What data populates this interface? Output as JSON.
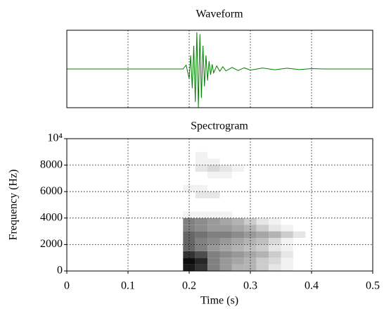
{
  "chart_data": [
    {
      "type": "line",
      "title": "Waveform",
      "x": [
        0,
        0.19,
        0.195,
        0.2,
        0.2025,
        0.205,
        0.2075,
        0.21,
        0.2125,
        0.215,
        0.2175,
        0.22,
        0.2225,
        0.225,
        0.2275,
        0.23,
        0.2325,
        0.235,
        0.2375,
        0.24,
        0.245,
        0.25,
        0.255,
        0.26,
        0.27,
        0.28,
        0.29,
        0.3,
        0.32,
        0.34,
        0.36,
        0.38,
        0.4,
        0.42,
        0.5
      ],
      "series": [
        {
          "color": "#008000",
          "values": [
            0,
            0,
            0.1,
            -0.25,
            0.35,
            -0.5,
            0.6,
            -0.85,
            0.95,
            -1.0,
            0.9,
            -0.75,
            0.6,
            -0.45,
            0.35,
            -0.3,
            0.2,
            -0.15,
            0.12,
            -0.1,
            0.08,
            -0.06,
            0.06,
            -0.05,
            0.04,
            -0.04,
            0.03,
            -0.03,
            0.025,
            -0.02,
            0.02,
            -0.015,
            0.01,
            0,
            0
          ]
        }
      ],
      "xlim": [
        0,
        0.5
      ],
      "ylim": [
        -1,
        1
      ],
      "xticks": [
        0.1,
        0.2,
        0.3,
        0.4
      ],
      "grid": true,
      "tick_labels": false
    },
    {
      "type": "heatmap",
      "title": "Spectrogram",
      "xlabel": "Time (s)",
      "ylabel": "Frequency (Hz)",
      "x_bins": [
        0.19,
        0.21,
        0.23,
        0.25,
        0.27,
        0.29,
        0.31,
        0.33,
        0.35,
        0.37,
        0.39
      ],
      "y_bins": [
        0,
        500,
        1000,
        1500,
        2000,
        2500,
        3000,
        3500,
        4000,
        4500,
        5000,
        5500,
        6000,
        6500,
        7000,
        7500,
        8000,
        8500,
        9000
      ],
      "values": [
        [
          0.9,
          0.8,
          0.5,
          0.4,
          0.3,
          0.3,
          0.2,
          0.1,
          0.05,
          0
        ],
        [
          0.95,
          0.85,
          0.5,
          0.4,
          0.35,
          0.3,
          0.2,
          0.15,
          0.05,
          0
        ],
        [
          0.8,
          0.7,
          0.5,
          0.45,
          0.4,
          0.35,
          0.3,
          0.2,
          0.1,
          0
        ],
        [
          0.6,
          0.5,
          0.4,
          0.35,
          0.3,
          0.25,
          0.2,
          0.1,
          0.05,
          0
        ],
        [
          0.6,
          0.5,
          0.45,
          0.4,
          0.35,
          0.3,
          0.25,
          0.15,
          0.05,
          0
        ],
        [
          0.6,
          0.55,
          0.5,
          0.5,
          0.45,
          0.4,
          0.35,
          0.3,
          0.2,
          0.1
        ],
        [
          0.5,
          0.45,
          0.4,
          0.4,
          0.35,
          0.3,
          0.2,
          0.1,
          0.05,
          0
        ],
        [
          0.5,
          0.45,
          0.4,
          0.35,
          0.3,
          0.2,
          0.1,
          0.05,
          0,
          0
        ],
        [
          0.05,
          0.05,
          0.05,
          0.05,
          0,
          0,
          0,
          0,
          0,
          0
        ],
        [
          0,
          0,
          0,
          0,
          0,
          0,
          0,
          0,
          0,
          0
        ],
        [
          0,
          0,
          0,
          0,
          0,
          0,
          0,
          0,
          0,
          0
        ],
        [
          0,
          0.1,
          0.1,
          0,
          0,
          0,
          0,
          0,
          0,
          0
        ],
        [
          0.05,
          0.05,
          0,
          0,
          0,
          0,
          0,
          0,
          0,
          0
        ],
        [
          0,
          0,
          0,
          0,
          0,
          0,
          0,
          0,
          0,
          0
        ],
        [
          0,
          0,
          0.05,
          0.05,
          0,
          0,
          0,
          0,
          0,
          0
        ],
        [
          0,
          0.1,
          0.15,
          0.1,
          0.05,
          0,
          0,
          0,
          0,
          0
        ],
        [
          0,
          0.05,
          0.05,
          0,
          0,
          0,
          0,
          0,
          0,
          0
        ],
        [
          0,
          0.05,
          0,
          0,
          0,
          0,
          0,
          0,
          0,
          0
        ]
      ],
      "xlim": [
        0,
        0.5
      ],
      "ylim": [
        0,
        10000
      ],
      "xticks": [
        0,
        0.1,
        0.2,
        0.3,
        0.4,
        0.5
      ],
      "yticks": [
        0,
        2000,
        4000,
        6000,
        8000,
        {
          "value": 10000,
          "label": "10⁴"
        }
      ],
      "grid": true
    }
  ]
}
